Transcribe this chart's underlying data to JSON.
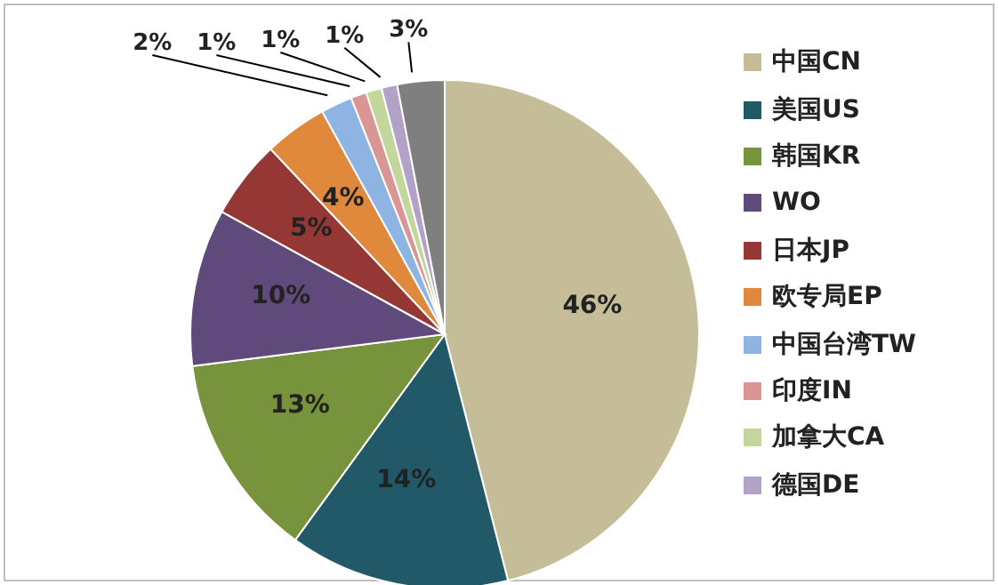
{
  "chart_data": {
    "type": "pie",
    "categories": [
      "中国CN",
      "美国US",
      "韩国KR",
      "WO",
      "日本JP",
      "欧专局EP",
      "中国台湾TW",
      "印度IN",
      "加拿大CA",
      "德国DE",
      null
    ],
    "values": [
      46,
      14,
      13,
      10,
      5,
      4,
      2,
      1,
      1,
      1,
      3
    ],
    "value_labels": [
      "46%",
      "14%",
      "13%",
      "10%",
      "5%",
      "4%",
      "2%",
      "1%",
      "1%",
      "1%",
      "3%"
    ],
    "colors": [
      "#c4bd97",
      "#215968",
      "#77933c",
      "#604a7b",
      "#953735",
      "#e0883c",
      "#8eb4e3",
      "#d99694",
      "#c3d69b",
      "#b3a2c7",
      "#7f7f7f"
    ],
    "legend": "right"
  }
}
